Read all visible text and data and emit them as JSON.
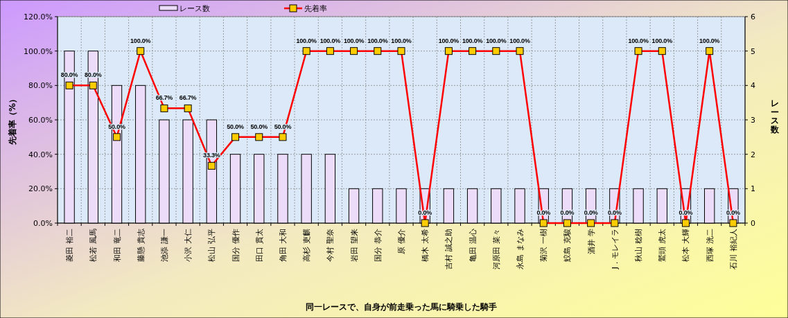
{
  "chart_data": {
    "type": "bar",
    "xlabel": "同一レースで、自身が前走乗った馬に騎乗した騎手",
    "ylabel": "先着率（%）",
    "y2label": "レース数",
    "categories": [
      "菱田 裕二",
      "松若 風馬",
      "和田 竜二",
      "藤懸 貴志",
      "池添 謙一",
      "小沢 大仁",
      "松山 弘平",
      "国分 優作",
      "田口 貫太",
      "角田 大和",
      "高杉 吏麒",
      "今村 聖奈",
      "岩田 望来",
      "国分 恭介",
      "原 優介",
      "橋木 太希",
      "吉村 誠之助",
      "亀田 温心",
      "河原田 菜々",
      "永島 まなみ",
      "菊沢 一樹",
      "鮫島 克駿",
      "酒井 学",
      "J．モレイラ",
      "秋山 稔樹",
      "鷲頭 虎太",
      "松本 大輝",
      "西塚 洸二",
      "石川 裕紀人"
    ],
    "series": [
      {
        "name": "レース数",
        "axis": "y2",
        "color": "#ecdcfa",
        "values": [
          5,
          5,
          4,
          4,
          3,
          3,
          3,
          2,
          2,
          2,
          2,
          2,
          1,
          1,
          1,
          1,
          1,
          1,
          1,
          1,
          1,
          1,
          1,
          1,
          1,
          1,
          1,
          1,
          1
        ]
      },
      {
        "name": "先着率",
        "type": "line",
        "color": "#ff0000",
        "values": [
          80,
          80,
          50,
          100,
          66.7,
          66.7,
          33.3,
          50,
          50,
          50,
          100,
          100,
          100,
          100,
          100,
          0,
          100,
          100,
          100,
          100,
          0,
          0,
          0,
          0,
          100,
          100,
          0,
          100,
          0
        ],
        "value_labels": [
          "80.0%",
          "80.0%",
          "50.0%",
          "100.0%",
          "66.7%",
          "66.7%",
          "33.3%",
          "50.0%",
          "50.0%",
          "50.0%",
          "100.0%",
          "100.0%",
          "100.0%",
          "100.0%",
          "100.0%",
          "0.0%",
          "100.0%",
          "100.0%",
          "100.0%",
          "100.0%",
          "0.0%",
          "0.0%",
          "0.0%",
          "0.0%",
          "100.0%",
          "100.0%",
          "0.0%",
          "100.0%",
          "0.0%"
        ]
      }
    ],
    "ylim": [
      0,
      120
    ],
    "yticks": [
      {
        "value": 0,
        "label": "0.0%"
      },
      {
        "value": 20,
        "label": "20.0%"
      },
      {
        "value": 40,
        "label": "40.0%"
      },
      {
        "value": 60,
        "label": "60.0%"
      },
      {
        "value": 80,
        "label": "80.0%"
      },
      {
        "value": 100,
        "label": "100.0%"
      },
      {
        "value": 120,
        "label": "120.0%"
      }
    ],
    "y2lim": [
      0,
      6
    ],
    "y2ticks": [
      0,
      1,
      2,
      3,
      4,
      5,
      6
    ],
    "grid": true,
    "legend": "top",
    "marker": "square"
  }
}
